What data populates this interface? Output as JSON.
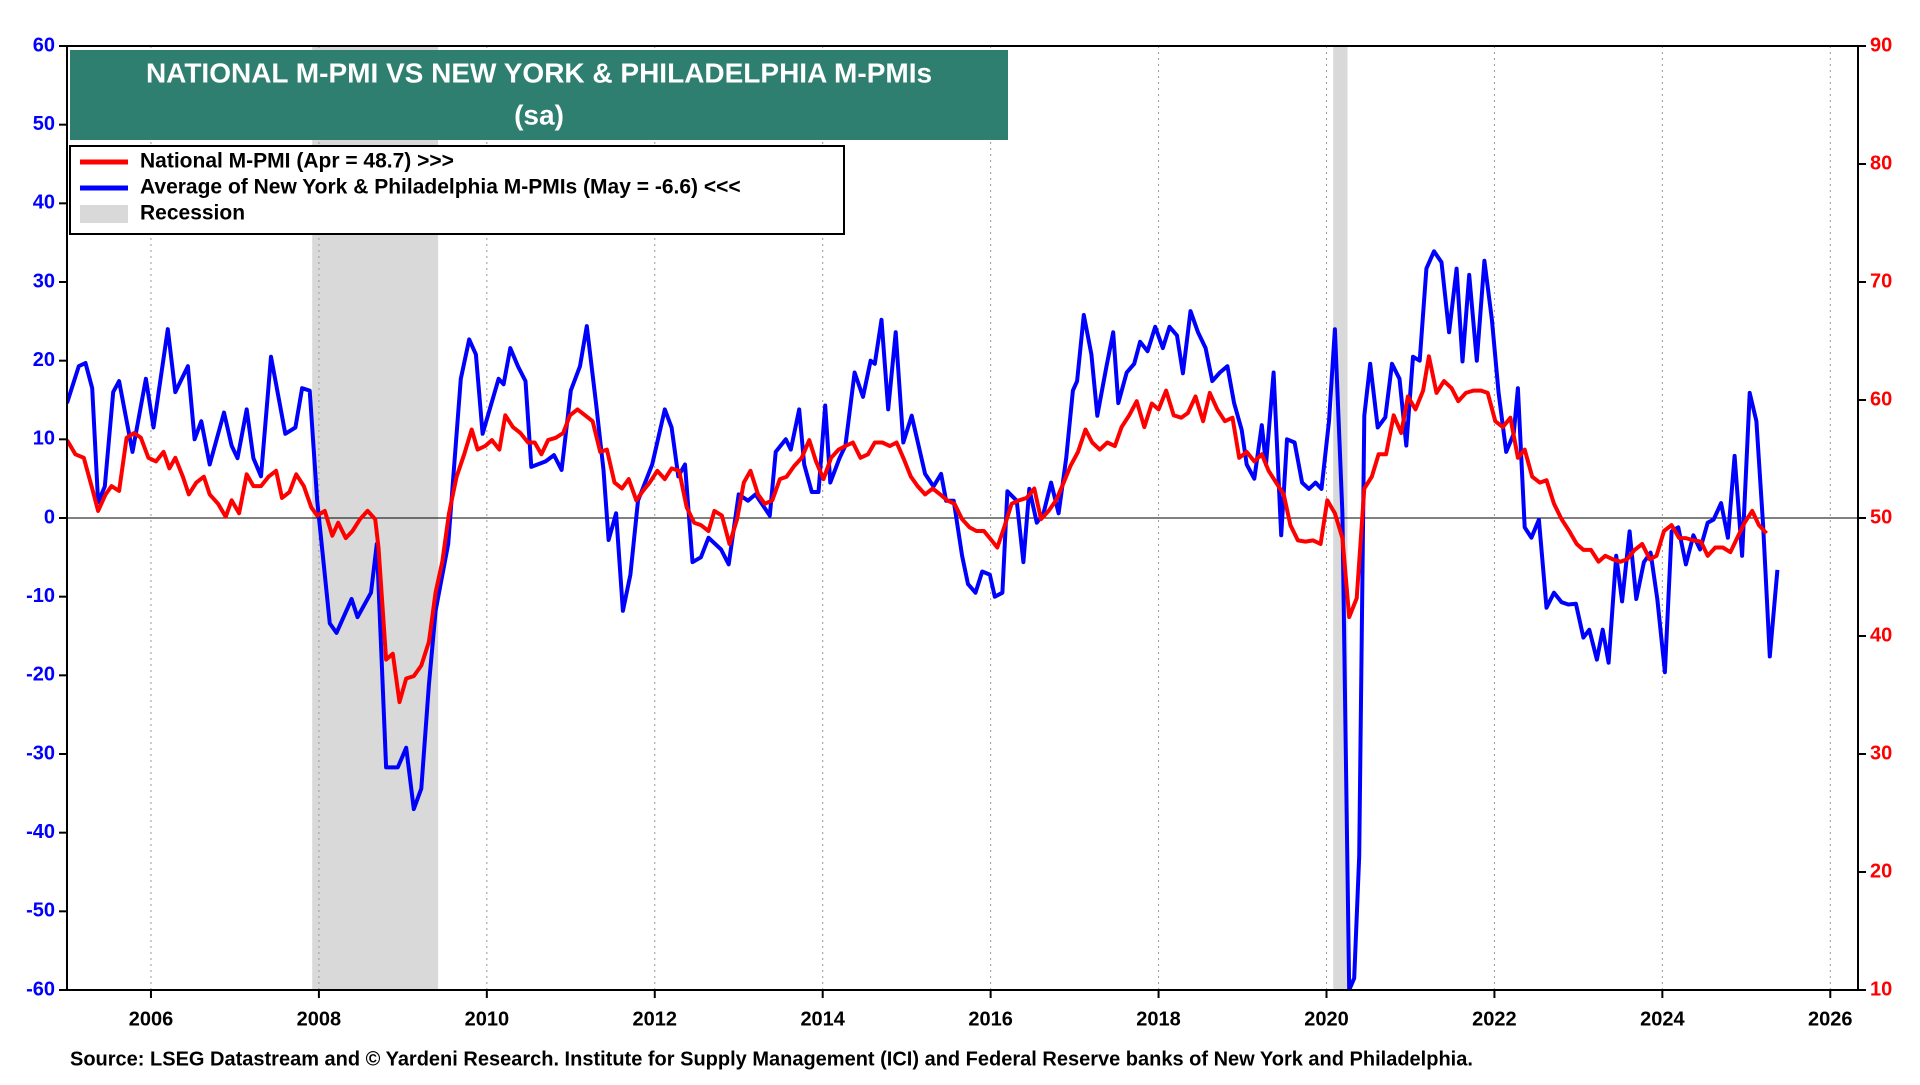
{
  "chart_data": {
    "type": "line",
    "title": "NATIONAL M-PMI VS NEW YORK & PHILADELPHIA M-PMIs",
    "subtitle": "(sa)",
    "source": "Source: LSEG Datastream and © Yardeni Research. Institute for Supply Management (ICI) and Federal Reserve banks of New York and Philadelphia.",
    "xlim": [
      2005,
      2026.33
    ],
    "xticks": [
      2006,
      2008,
      2010,
      2012,
      2014,
      2016,
      2018,
      2020,
      2022,
      2024,
      2026
    ],
    "ylim": [
      -60,
      60
    ],
    "yticks": [
      -60,
      -50,
      -40,
      -30,
      -20,
      -10,
      0,
      10,
      20,
      30,
      40,
      50,
      60
    ],
    "y2lim": [
      10,
      90
    ],
    "y2ticks": [
      10,
      20,
      30,
      40,
      50,
      60,
      70,
      80,
      90
    ],
    "grid": "x",
    "legend": "top-left",
    "recession_label": "Recession",
    "recession_color": "#d9d9d9",
    "recessions": [
      [
        2007.92,
        2009.42
      ],
      [
        2020.08,
        2020.25
      ]
    ],
    "series": [
      {
        "name": "National M-PMI (Apr = 48.7) >>>",
        "color": "#ff0000",
        "axis": "y2",
        "x": [
          2005.0,
          2005.1,
          2005.2,
          2005.3,
          2005.37,
          2005.46,
          2005.53,
          2005.62,
          2005.71,
          2005.8,
          2005.88,
          2005.97,
          2006.06,
          2006.15,
          2006.22,
          2006.29,
          2006.38,
          2006.45,
          2006.54,
          2006.63,
          2006.7,
          2006.8,
          2006.89,
          2006.96,
          2007.05,
          2007.14,
          2007.22,
          2007.31,
          2007.4,
          2007.49,
          2007.56,
          2007.65,
          2007.73,
          2007.82,
          2007.91,
          2007.98,
          2008.07,
          2008.16,
          2008.23,
          2008.32,
          2008.4,
          2008.49,
          2008.58,
          2008.67,
          2008.71,
          2008.8,
          2008.88,
          2008.96,
          2009.04,
          2009.13,
          2009.22,
          2009.31,
          2009.39,
          2009.47,
          2009.55,
          2009.64,
          2009.73,
          2009.82,
          2009.89,
          2009.98,
          2010.06,
          2010.15,
          2010.22,
          2010.31,
          2010.4,
          2010.49,
          2010.57,
          2010.65,
          2010.73,
          2010.82,
          2010.91,
          2010.99,
          2011.08,
          2011.17,
          2011.26,
          2011.35,
          2011.43,
          2011.52,
          2011.61,
          2011.69,
          2011.78,
          2011.86,
          2011.94,
          2012.03,
          2012.12,
          2012.2,
          2012.29,
          2012.38,
          2012.47,
          2012.55,
          2012.64,
          2012.71,
          2012.8,
          2012.89,
          2012.98,
          2013.06,
          2013.14,
          2013.23,
          2013.31,
          2013.4,
          2013.49,
          2013.57,
          2013.66,
          2013.75,
          2013.84,
          2013.92,
          2014.01,
          2014.1,
          2014.19,
          2014.27,
          2014.36,
          2014.45,
          2014.54,
          2014.62,
          2014.71,
          2014.8,
          2014.88,
          2014.96,
          2015.05,
          2015.13,
          2015.22,
          2015.31,
          2015.4,
          2015.48,
          2015.57,
          2015.66,
          2015.75,
          2015.83,
          2015.92,
          2015.99,
          2016.08,
          2016.17,
          2016.25,
          2016.34,
          2016.43,
          2016.52,
          2016.6,
          2016.69,
          2016.78,
          2016.87,
          2016.95,
          2017.04,
          2017.13,
          2017.21,
          2017.3,
          2017.39,
          2017.48,
          2017.56,
          2017.65,
          2017.74,
          2017.83,
          2017.92,
          2018.0,
          2018.09,
          2018.18,
          2018.27,
          2018.35,
          2018.44,
          2018.53,
          2018.61,
          2018.7,
          2018.79,
          2018.88,
          2018.96,
          2019.05,
          2019.14,
          2019.23,
          2019.31,
          2019.4,
          2019.49,
          2019.57,
          2019.66,
          2019.75,
          2019.84,
          2019.93,
          2020.01,
          2020.1,
          2020.19,
          2020.27,
          2020.36,
          2020.45,
          2020.54,
          2020.62,
          2020.71,
          2020.8,
          2020.89,
          2020.97,
          2021.06,
          2021.15,
          2021.22,
          2021.31,
          2021.4,
          2021.49,
          2021.57,
          2021.66,
          2021.75,
          2021.84,
          2021.92,
          2022.01,
          2022.1,
          2022.19,
          2022.28,
          2022.36,
          2022.45,
          2022.54,
          2022.62,
          2022.71,
          2022.8,
          2022.89,
          2022.98,
          2023.06,
          2023.15,
          2023.24,
          2023.32,
          2023.41,
          2023.5,
          2023.58,
          2023.67,
          2023.76,
          2023.85,
          2023.93,
          2024.02,
          2024.11,
          2024.2,
          2024.28,
          2024.37,
          2024.46,
          2024.54,
          2024.63,
          2024.72,
          2024.81,
          2024.89,
          2024.98,
          2025.07,
          2025.15,
          2025.24
        ],
        "values": [
          56.6,
          55.4,
          55.1,
          52.5,
          50.6,
          52,
          52.7,
          52.3,
          56.8,
          57.2,
          56.8,
          55.1,
          54.8,
          55.6,
          54.2,
          55.1,
          53.5,
          52,
          53,
          53.5,
          52,
          51.2,
          50.1,
          51.5,
          50.4,
          53.7,
          52.7,
          52.7,
          53.5,
          54,
          51.7,
          52.2,
          53.7,
          52.7,
          50.9,
          50.2,
          50.6,
          48.5,
          49.6,
          48.3,
          48.9,
          49.9,
          50.6,
          49.9,
          47.5,
          38,
          38.5,
          34.4,
          36.4,
          36.6,
          37.5,
          39.5,
          43.7,
          46.3,
          50.4,
          53.5,
          55.4,
          57.5,
          55.8,
          56.1,
          56.6,
          55.8,
          58.7,
          57.7,
          57.2,
          56.4,
          56.4,
          55.4,
          56.6,
          56.8,
          57.2,
          58.7,
          59.2,
          58.7,
          58.2,
          55.6,
          55.8,
          53,
          52.5,
          53.3,
          51.5,
          52.3,
          53,
          54,
          53.3,
          54.2,
          54,
          50.9,
          49.6,
          49.4,
          48.9,
          50.6,
          50.2,
          47.8,
          49.9,
          53,
          54,
          52,
          51.2,
          51.5,
          53.3,
          53.5,
          54.4,
          55.1,
          56.6,
          54.8,
          53.3,
          55.1,
          55.8,
          56.1,
          56.4,
          55.1,
          55.4,
          56.4,
          56.4,
          56.1,
          56.4,
          55.1,
          53.5,
          52.7,
          52,
          52.5,
          52,
          51.5,
          51.2,
          49.9,
          49.2,
          48.9,
          48.9,
          48.3,
          47.5,
          49.4,
          51.2,
          51.5,
          51.7,
          52.5,
          49.9,
          50.6,
          51.5,
          53,
          54.4,
          55.6,
          57.5,
          56.4,
          55.8,
          56.4,
          56.1,
          57.7,
          58.7,
          59.9,
          57.7,
          59.7,
          59.2,
          60.8,
          58.7,
          58.5,
          58.9,
          60.3,
          58.2,
          60.6,
          59.2,
          58.2,
          58.5,
          55.1,
          55.6,
          54.8,
          55.4,
          54,
          53,
          52,
          49.4,
          48.1,
          48,
          48.1,
          47.8,
          51.5,
          50.4,
          48.3,
          41.6,
          43.2,
          52.5,
          53.5,
          55.4,
          55.4,
          58.7,
          57.2,
          60.3,
          59.2,
          60.8,
          63.7,
          60.6,
          61.6,
          61,
          59.9,
          60.6,
          60.8,
          60.8,
          60.6,
          58.2,
          57.7,
          58.5,
          55.1,
          55.8,
          53.5,
          53,
          53.2,
          51.2,
          49.9,
          48.9,
          47.8,
          47.3,
          47.3,
          46.3,
          46.8,
          46.5,
          46.3,
          46.5,
          47.3,
          47.8,
          46.5,
          46.8,
          48.9,
          49.4,
          48.3,
          48.3,
          48.1,
          48,
          46.8,
          47.5,
          47.5,
          47.1,
          48.3,
          49.6,
          50.6,
          49.4,
          48.7
        ]
      },
      {
        "name": "Average of New York & Philadelphia M-PMIs (May = -6.6) <<<",
        "color": "#0000ff",
        "axis": "y",
        "x": [
          2005.0,
          2005.14,
          2005.22,
          2005.3,
          2005.37,
          2005.45,
          2005.55,
          2005.62,
          2005.78,
          2005.94,
          2006.03,
          2006.2,
          2006.29,
          2006.44,
          2006.52,
          2006.6,
          2006.7,
          2006.87,
          2006.96,
          2007.03,
          2007.14,
          2007.22,
          2007.31,
          2007.43,
          2007.6,
          2007.72,
          2007.8,
          2007.89,
          2007.98,
          2008.13,
          2008.21,
          2008.39,
          2008.46,
          2008.62,
          2008.69,
          2008.8,
          2008.94,
          2009.04,
          2009.13,
          2009.22,
          2009.31,
          2009.39,
          2009.54,
          2009.69,
          2009.79,
          2009.87,
          2009.95,
          2010.14,
          2010.2,
          2010.28,
          2010.37,
          2010.46,
          2010.53,
          2010.7,
          2010.8,
          2010.89,
          2011.0,
          2011.11,
          2011.19,
          2011.3,
          2011.39,
          2011.45,
          2011.54,
          2011.62,
          2011.71,
          2011.8,
          2011.97,
          2012.12,
          2012.2,
          2012.28,
          2012.36,
          2012.45,
          2012.55,
          2012.64,
          2012.79,
          2012.88,
          2013.0,
          2013.11,
          2013.2,
          2013.37,
          2013.44,
          2013.56,
          2013.62,
          2013.72,
          2013.78,
          2013.87,
          2013.95,
          2014.03,
          2014.09,
          2014.2,
          2014.27,
          2014.38,
          2014.48,
          2014.57,
          2014.62,
          2014.7,
          2014.78,
          2014.87,
          2014.96,
          2015.06,
          2015.22,
          2015.32,
          2015.41,
          2015.47,
          2015.56,
          2015.66,
          2015.73,
          2015.82,
          2015.9,
          2015.99,
          2016.05,
          2016.14,
          2016.2,
          2016.31,
          2016.39,
          2016.46,
          2016.55,
          2016.63,
          2016.72,
          2016.81,
          2016.9,
          2016.98,
          2017.03,
          2017.11,
          2017.2,
          2017.27,
          2017.38,
          2017.46,
          2017.52,
          2017.62,
          2017.71,
          2017.78,
          2017.87,
          2017.96,
          2018.05,
          2018.13,
          2018.22,
          2018.29,
          2018.38,
          2018.47,
          2018.56,
          2018.64,
          2018.73,
          2018.82,
          2018.9,
          2018.99,
          2019.05,
          2019.14,
          2019.23,
          2019.28,
          2019.37,
          2019.46,
          2019.53,
          2019.62,
          2019.71,
          2019.79,
          2019.87,
          2019.94,
          2020.03,
          2020.1,
          2020.19,
          2020.27,
          2020.33,
          2020.39,
          2020.45,
          2020.52,
          2020.61,
          2020.7,
          2020.78,
          2020.87,
          2020.95,
          2021.03,
          2021.11,
          2021.19,
          2021.28,
          2021.37,
          2021.46,
          2021.55,
          2021.62,
          2021.7,
          2021.79,
          2021.88,
          2021.97,
          2022.05,
          2022.14,
          2022.23,
          2022.28,
          2022.36,
          2022.44,
          2022.53,
          2022.62,
          2022.71,
          2022.8,
          2022.88,
          2022.97,
          2023.06,
          2023.13,
          2023.22,
          2023.29,
          2023.36,
          2023.45,
          2023.52,
          2023.61,
          2023.69,
          2023.78,
          2023.86,
          2023.94,
          2024.03,
          2024.11,
          2024.19,
          2024.28,
          2024.37,
          2024.45,
          2024.54,
          2024.61,
          2024.7,
          2024.78,
          2024.86,
          2024.95,
          2025.04,
          2025.12,
          2025.2,
          2025.28,
          2025.37
        ],
        "values": [
          14.6,
          19.3,
          19.7,
          16.5,
          2,
          4,
          16,
          17.4,
          8.4,
          17.7,
          11.5,
          24,
          16,
          19.3,
          10,
          12.3,
          6.8,
          13.4,
          9.2,
          7.6,
          13.8,
          7.6,
          5.3,
          20.5,
          10.7,
          11.5,
          16.5,
          16.2,
          2.2,
          -13.4,
          -14.6,
          -10.3,
          -12.6,
          -9.5,
          -3.3,
          -31.7,
          -31.7,
          -29.2,
          -37,
          -34.4,
          -21.2,
          -11.8,
          -3.3,
          17.7,
          22.7,
          20.8,
          10.7,
          17.7,
          17,
          21.6,
          19.3,
          17.4,
          6.5,
          7.2,
          8,
          6.1,
          16.2,
          19.3,
          24.4,
          14.6,
          6.1,
          -2.8,
          0.6,
          -11.8,
          -7.2,
          2.2,
          6.8,
          13.8,
          11.5,
          5.3,
          6.8,
          -5.6,
          -5,
          -2.5,
          -4,
          -5.9,
          3,
          2.2,
          3,
          0.3,
          8.4,
          10,
          8.7,
          13.8,
          6.8,
          3.3,
          3.3,
          14.3,
          4.5,
          7.6,
          9.2,
          18.5,
          15.4,
          20,
          19.6,
          25.2,
          13.8,
          23.6,
          9.6,
          13,
          5.6,
          4,
          5.6,
          2.2,
          2.2,
          -4.8,
          -8.4,
          -9.5,
          -6.8,
          -7.2,
          -10,
          -9.5,
          3.4,
          2.2,
          -5.6,
          3.7,
          -0.6,
          0.6,
          4.5,
          0.6,
          7.6,
          16.2,
          17.4,
          25.8,
          20.8,
          13,
          19.3,
          23.6,
          14.6,
          18.5,
          19.6,
          22.4,
          21.2,
          24.3,
          21.6,
          24.3,
          23.2,
          18.4,
          26.3,
          23.6,
          21.6,
          17.4,
          18.5,
          19.3,
          14.6,
          11.2,
          6.8,
          5,
          11.8,
          6.8,
          18.5,
          -2.2,
          10,
          9.6,
          4.5,
          3.7,
          4.5,
          3.7,
          12.3,
          24,
          0.6,
          -60,
          -58.5,
          -43,
          13,
          19.6,
          11.5,
          12.8,
          19.6,
          17.7,
          9.2,
          20.5,
          20,
          31.7,
          33.9,
          32.5,
          23.6,
          31.7,
          19.9,
          30.9,
          20,
          32.7,
          25.2,
          15.9,
          8.4,
          10.7,
          16.5,
          -1.2,
          -2.5,
          -0.2,
          -11.4,
          -9.5,
          -10.7,
          -11,
          -10.9,
          -15.2,
          -14.2,
          -18,
          -14.2,
          -18.4,
          -4.8,
          -10.6,
          -1.7,
          -10.3,
          -5.6,
          -4.4,
          -10.3,
          -19.6,
          -1.7,
          -1.2,
          -5.9,
          -2.2,
          -4,
          -0.6,
          -0.2,
          1.9,
          -2.5,
          7.9,
          -4.8,
          15.9,
          12.3,
          -0.9,
          -17.6,
          -6.6
        ]
      }
    ]
  }
}
